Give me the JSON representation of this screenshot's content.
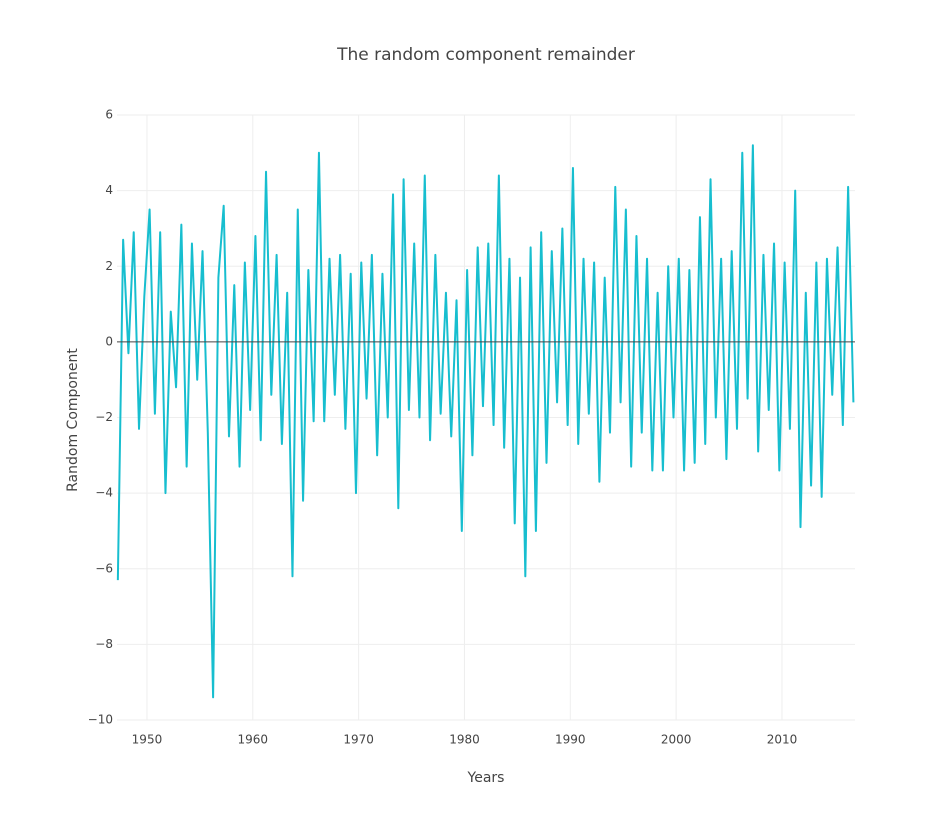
{
  "chart_data": {
    "type": "line",
    "title": "The random component remainder",
    "x_label": "Years",
    "y_label": "Random Component",
    "color": "#17becf",
    "grid": true,
    "x": [
      1947.25,
      1947.75,
      1948.25,
      1948.75,
      1949.25,
      1949.75,
      1950.25,
      1950.75,
      1951.25,
      1951.75,
      1952.25,
      1952.75,
      1953.25,
      1953.75,
      1954.25,
      1954.75,
      1955.25,
      1955.75,
      1956.25,
      1956.75,
      1957.25,
      1957.75,
      1958.25,
      1958.75,
      1959.25,
      1959.75,
      1960.25,
      1960.75,
      1961.25,
      1961.75,
      1962.25,
      1962.75,
      1963.25,
      1963.75,
      1964.25,
      1964.75,
      1965.25,
      1965.75,
      1966.25,
      1966.75,
      1967.25,
      1967.75,
      1968.25,
      1968.75,
      1969.25,
      1969.75,
      1970.25,
      1970.75,
      1971.25,
      1971.75,
      1972.25,
      1972.75,
      1973.25,
      1973.75,
      1974.25,
      1974.75,
      1975.25,
      1975.75,
      1976.25,
      1976.75,
      1977.25,
      1977.75,
      1978.25,
      1978.75,
      1979.25,
      1979.75,
      1980.25,
      1980.75,
      1981.25,
      1981.75,
      1982.25,
      1982.75,
      1983.25,
      1983.75,
      1984.25,
      1984.75,
      1985.25,
      1985.75,
      1986.25,
      1986.75,
      1987.25,
      1987.75,
      1988.25,
      1988.75,
      1989.25,
      1989.75,
      1990.25,
      1990.75,
      1991.25,
      1991.75,
      1992.25,
      1992.75,
      1993.25,
      1993.75,
      1994.25,
      1994.75,
      1995.25,
      1995.75,
      1996.25,
      1996.75,
      1997.25,
      1997.75,
      1998.25,
      1998.75,
      1999.25,
      1999.75,
      2000.25,
      2000.75,
      2001.25,
      2001.75,
      2002.25,
      2002.75,
      2003.25,
      2003.75,
      2004.25,
      2004.75,
      2005.25,
      2005.75,
      2006.25,
      2006.75,
      2007.25,
      2007.75,
      2008.25,
      2008.75,
      2009.25,
      2009.75,
      2010.25,
      2010.75,
      2011.25,
      2011.75,
      2012.25,
      2012.75,
      2013.25,
      2013.75,
      2014.25,
      2014.75,
      2015.25,
      2015.75,
      2016.25,
      2016.75
    ],
    "values": [
      -6.3,
      2.7,
      -0.3,
      2.9,
      -2.3,
      1.2,
      3.5,
      -1.9,
      2.9,
      -4.0,
      0.8,
      -1.2,
      3.1,
      -3.3,
      2.6,
      -1.0,
      2.4,
      -2.4,
      -9.4,
      1.7,
      3.6,
      -2.5,
      1.5,
      -3.3,
      2.1,
      -1.8,
      2.8,
      -2.6,
      4.5,
      -1.4,
      2.3,
      -2.7,
      1.3,
      -6.2,
      3.5,
      -4.2,
      1.9,
      -2.1,
      5.0,
      -2.1,
      2.2,
      -1.4,
      2.3,
      -2.3,
      1.8,
      -4.0,
      2.1,
      -1.5,
      2.3,
      -3.0,
      1.8,
      -2.0,
      3.9,
      -4.4,
      4.3,
      -1.8,
      2.6,
      -2.0,
      4.4,
      -2.6,
      2.3,
      -1.9,
      1.3,
      -2.5,
      1.1,
      -5.0,
      1.9,
      -3.0,
      2.5,
      -1.7,
      2.6,
      -2.2,
      4.4,
      -2.8,
      2.2,
      -4.8,
      1.7,
      -6.2,
      2.5,
      -5.0,
      2.9,
      -3.2,
      2.4,
      -1.6,
      3.0,
      -2.2,
      4.6,
      -2.7,
      2.2,
      -1.9,
      2.1,
      -3.7,
      1.7,
      -2.4,
      4.1,
      -1.6,
      3.5,
      -3.3,
      2.8,
      -2.4,
      2.2,
      -3.4,
      1.3,
      -3.4,
      2.0,
      -2.0,
      2.2,
      -3.4,
      1.9,
      -3.2,
      3.3,
      -2.7,
      4.3,
      -2.0,
      2.2,
      -3.1,
      2.4,
      -2.3,
      5.0,
      -1.5,
      5.2,
      -2.9,
      2.3,
      -1.8,
      2.6,
      -3.4,
      2.1,
      -2.3,
      4.0,
      -4.9,
      1.3,
      -3.8,
      2.1,
      -4.1,
      2.2,
      -1.4,
      2.5,
      -2.2,
      4.1,
      -1.6
    ],
    "xlim": [
      1947.17,
      2016.9
    ],
    "xticks": [
      1950,
      1960,
      1970,
      1980,
      1990,
      2000,
      2010
    ],
    "ylim": [
      -10,
      6
    ],
    "yticks": [
      {
        "value": -10,
        "label": "−10"
      },
      {
        "value": -8,
        "label": "−8"
      },
      {
        "value": -6,
        "label": "−6"
      },
      {
        "value": -4,
        "label": "−4"
      },
      {
        "value": -2,
        "label": "−2"
      },
      0,
      2,
      4,
      6
    ]
  }
}
